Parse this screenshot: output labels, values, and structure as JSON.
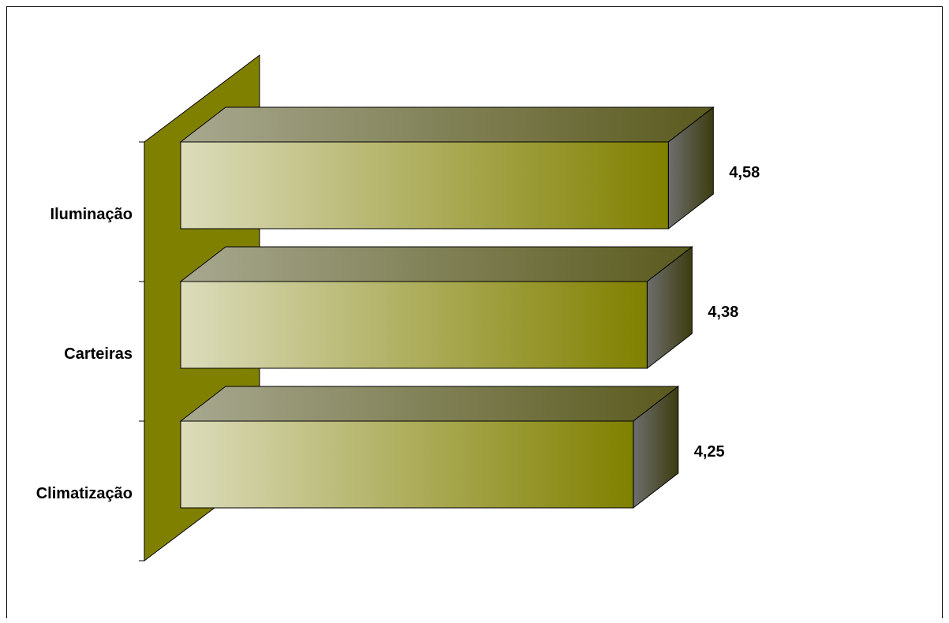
{
  "chart_data": {
    "type": "bar",
    "orientation": "horizontal",
    "style": "3d",
    "categories": [
      "Iluminação",
      "Carteiras",
      "Climatização"
    ],
    "values": [
      4.58,
      4.38,
      4.25
    ],
    "value_labels": [
      "4,58",
      "4,38",
      "4,25"
    ],
    "title": "",
    "xlabel": "",
    "ylabel": "",
    "xlim": [
      0,
      4.58
    ],
    "grid": false,
    "legend": "none",
    "colors": {
      "bar_light": "#dcdcbc",
      "bar_dark": "#808000",
      "bar_top_light": "#a8a890",
      "bar_top_dark": "#5a5a1e",
      "bar_side_light": "#6e6e6e",
      "bar_side_dark": "#3c3c10",
      "back_wall": "#808000",
      "outline": "#000000"
    }
  }
}
